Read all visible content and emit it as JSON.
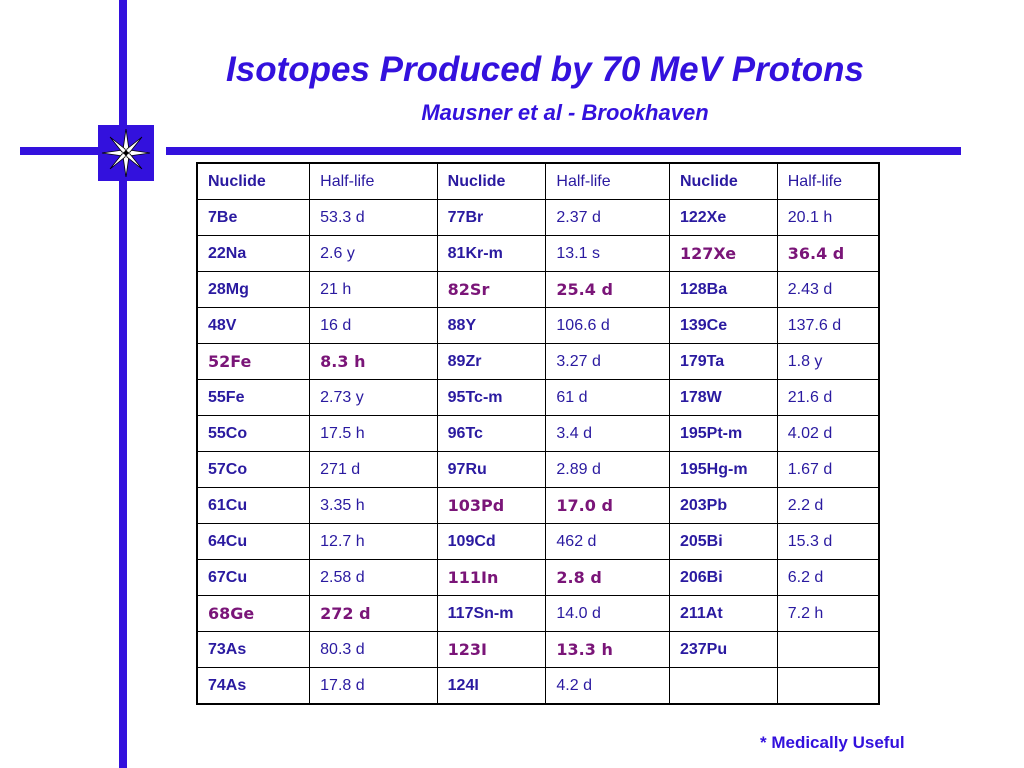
{
  "header": {
    "title": "Isotopes Produced by 70 MeV Protons",
    "subtitle": "Mausner et al - Brookhaven"
  },
  "colors": {
    "accent": "#3311dd",
    "text": "#2a1aa0",
    "highlight": "#7a1578"
  },
  "table": {
    "headers": [
      "Nuclide",
      "Half-life",
      "Nuclide",
      "Half-life",
      "Nuclide",
      "Half-life"
    ],
    "rows": [
      [
        {
          "n": "7Be",
          "h": "53.3 d",
          "u": false
        },
        {
          "n": "77Br",
          "h": "2.37 d",
          "u": false
        },
        {
          "n": "122Xe",
          "h": "20.1 h",
          "u": false
        }
      ],
      [
        {
          "n": "22Na",
          "h": "2.6 y",
          "u": false
        },
        {
          "n": "81Kr-m",
          "h": "13.1 s",
          "u": false
        },
        {
          "n": "127Xe",
          "h": "36.4 d",
          "u": true
        }
      ],
      [
        {
          "n": "28Mg",
          "h": "21 h",
          "u": false
        },
        {
          "n": "82Sr",
          "h": "25.4 d",
          "u": true
        },
        {
          "n": "128Ba",
          "h": "2.43 d",
          "u": false
        }
      ],
      [
        {
          "n": "48V",
          "h": "16 d",
          "u": false
        },
        {
          "n": "88Y",
          "h": "106.6 d",
          "u": false
        },
        {
          "n": "139Ce",
          "h": "137.6 d",
          "u": false
        }
      ],
      [
        {
          "n": "52Fe",
          "h": "8.3 h",
          "u": true
        },
        {
          "n": "89Zr",
          "h": "3.27 d",
          "u": false
        },
        {
          "n": "179Ta",
          "h": "1.8 y",
          "u": false
        }
      ],
      [
        {
          "n": "55Fe",
          "h": "2.73 y",
          "u": false
        },
        {
          "n": "95Tc-m",
          "h": "61 d",
          "u": false
        },
        {
          "n": "178W",
          "h": "21.6 d",
          "u": false
        }
      ],
      [
        {
          "n": "55Co",
          "h": "17.5 h",
          "u": false
        },
        {
          "n": "96Tc",
          "h": "3.4 d",
          "u": false
        },
        {
          "n": "195Pt-m",
          "h": "4.02 d",
          "u": false
        }
      ],
      [
        {
          "n": "57Co",
          "h": "271 d",
          "u": false
        },
        {
          "n": "97Ru",
          "h": "2.89 d",
          "u": false
        },
        {
          "n": "195Hg-m",
          "h": "1.67 d",
          "u": false
        }
      ],
      [
        {
          "n": "61Cu",
          "h": "3.35 h",
          "u": false
        },
        {
          "n": "103Pd",
          "h": "17.0 d",
          "u": true
        },
        {
          "n": "203Pb",
          "h": "2.2 d",
          "u": false
        }
      ],
      [
        {
          "n": "64Cu",
          "h": "12.7 h",
          "u": false
        },
        {
          "n": "109Cd",
          "h": "462 d",
          "u": false
        },
        {
          "n": "205Bi",
          "h": "15.3 d",
          "u": false
        }
      ],
      [
        {
          "n": "67Cu",
          "h": "2.58 d",
          "u": false
        },
        {
          "n": "111In",
          "h": "2.8 d",
          "u": true
        },
        {
          "n": "206Bi",
          "h": "6.2 d",
          "u": false
        }
      ],
      [
        {
          "n": "68Ge",
          "h": "272 d",
          "u": true
        },
        {
          "n": "117Sn-m",
          "h": "14.0 d",
          "u": false
        },
        {
          "n": "211At",
          "h": "7.2 h",
          "u": false
        }
      ],
      [
        {
          "n": "73As",
          "h": "80.3 d",
          "u": false
        },
        {
          "n": "123I",
          "h": "13.3 h",
          "u": true
        },
        {
          "n": "237Pu",
          "h": "",
          "u": false
        }
      ],
      [
        {
          "n": "74As",
          "h": "17.8 d",
          "u": false
        },
        {
          "n": "124I",
          "h": "4.2 d",
          "u": false
        },
        {
          "n": "",
          "h": "",
          "u": false
        }
      ]
    ]
  },
  "footnote": "* Medically Useful",
  "emblem_icon": "compass-star-icon"
}
